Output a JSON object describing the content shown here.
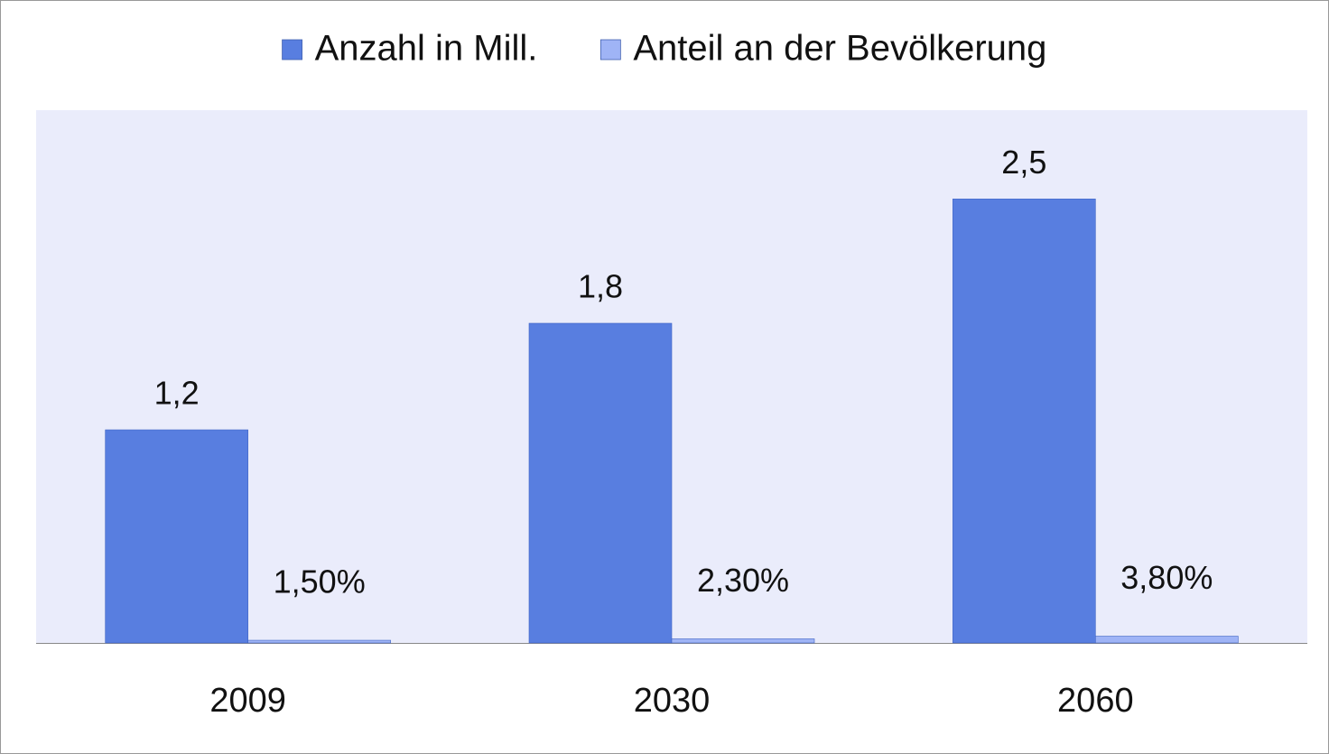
{
  "chart_data": {
    "type": "bar",
    "categories": [
      "2009",
      "2030",
      "2060"
    ],
    "series": [
      {
        "name": "Anzahl in Mill.",
        "color": "#587ee0",
        "values": [
          1.2,
          1.8,
          2.5
        ],
        "value_labels": [
          "1,2",
          "1,8",
          "2,5"
        ]
      },
      {
        "name": "Anteil an der Bevölkerung",
        "color": "#9fb4f6",
        "values": [
          0.015,
          0.023,
          0.038
        ],
        "value_labels": [
          "1,50%",
          "2,30%",
          "3,80%"
        ]
      }
    ],
    "ylim": [
      0,
      3
    ],
    "legend": "top",
    "grid": false
  }
}
